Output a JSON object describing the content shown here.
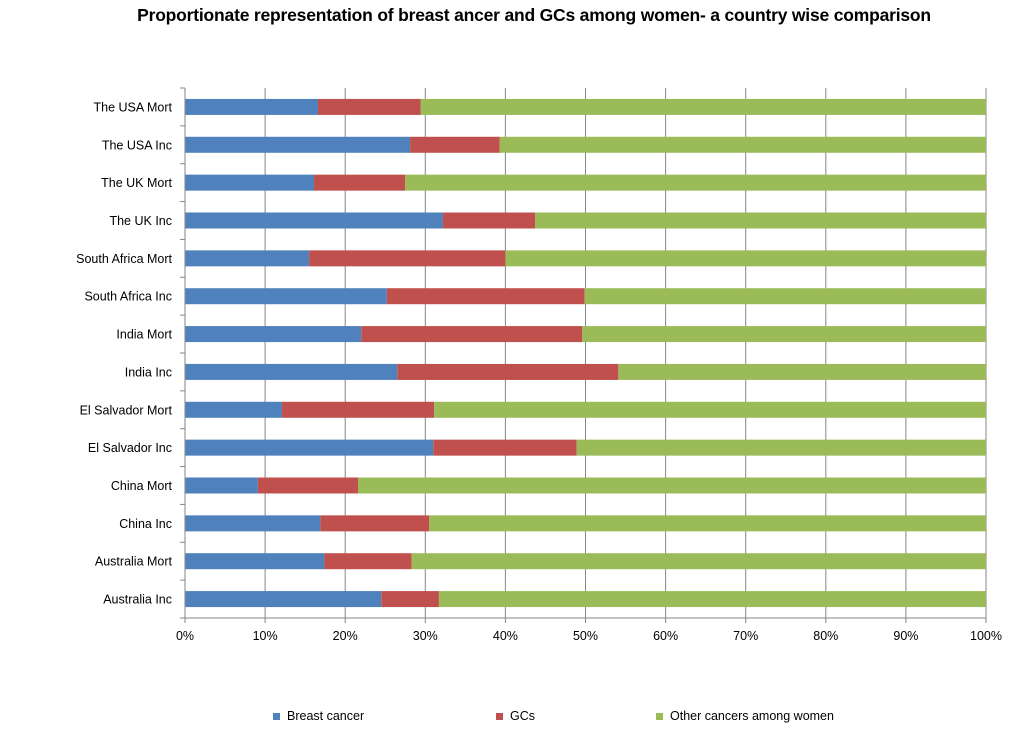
{
  "chart_data": {
    "type": "bar",
    "orientation": "horizontal",
    "stacked": "percent",
    "title": "Proportionate  representation of breast ancer and GCs among women- a country wise comparison",
    "xlabel": "",
    "ylabel": "",
    "xlim": [
      0,
      100
    ],
    "x_ticks": [
      "0%",
      "10%",
      "20%",
      "30%",
      "40%",
      "50%",
      "60%",
      "70%",
      "80%",
      "90%",
      "100%"
    ],
    "grid": "vertical major gridlines",
    "legend_position": "bottom",
    "categories": [
      "Australia Inc",
      "Australia Mort",
      "China Inc",
      "China Mort",
      "El Salvador Inc",
      "El Salvador Mort",
      "India Inc",
      "India Mort",
      "South Africa Inc",
      "South Africa Mort",
      "The UK Inc",
      "The UK Mort",
      "The USA Inc",
      "The USA Mort"
    ],
    "series": [
      {
        "name": "Breast cancer",
        "color": "#4f81bd",
        "values": [
          24.5,
          17.4,
          16.9,
          9.1,
          31.0,
          12.1,
          26.5,
          22.0,
          25.2,
          15.5,
          32.2,
          16.1,
          28.1,
          16.6
        ]
      },
      {
        "name": "GCs",
        "color": "#c0504d",
        "values": [
          7.2,
          10.9,
          13.6,
          12.5,
          17.9,
          19.0,
          27.6,
          27.6,
          24.7,
          24.5,
          11.5,
          11.4,
          11.2,
          12.8
        ]
      },
      {
        "name": "Other cancers among women",
        "color": "#9bbb59",
        "values": [
          68.3,
          71.7,
          69.5,
          78.4,
          51.1,
          68.9,
          45.9,
          50.4,
          50.1,
          60.0,
          56.3,
          72.5,
          60.7,
          70.6
        ]
      }
    ]
  }
}
